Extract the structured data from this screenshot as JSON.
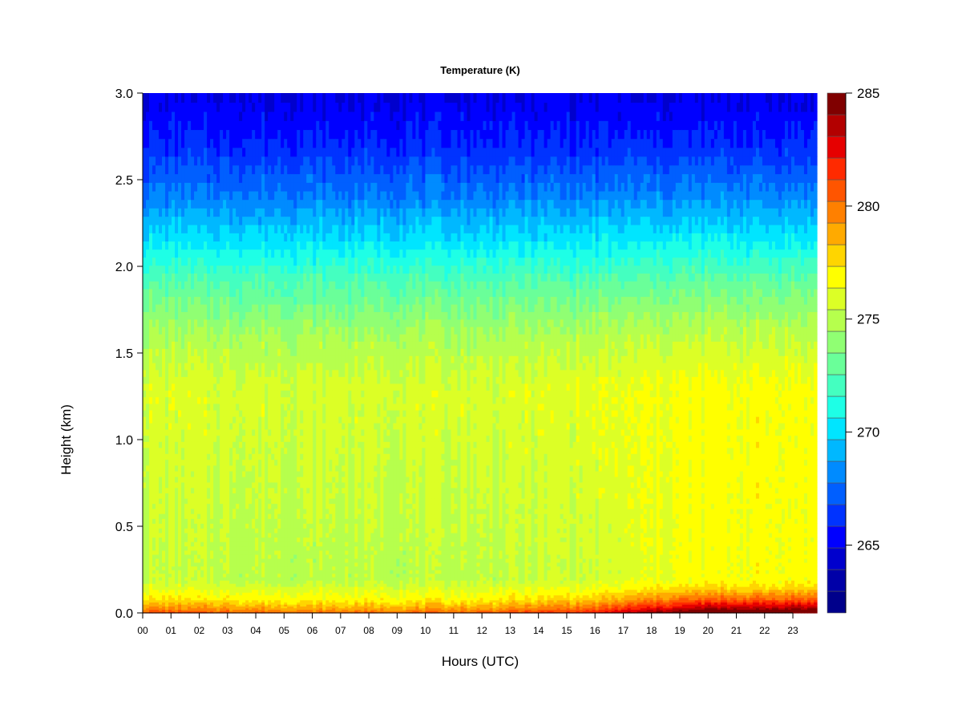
{
  "chart_data": {
    "type": "heatmap",
    "title": "Temperature (K)",
    "xlabel": "Hours (UTC)",
    "ylabel": "Height (km)",
    "x_ticks": [
      "00",
      "01",
      "02",
      "03",
      "04",
      "05",
      "06",
      "07",
      "08",
      "09",
      "10",
      "11",
      "12",
      "13",
      "14",
      "15",
      "16",
      "17",
      "18",
      "19",
      "20",
      "21",
      "22",
      "23"
    ],
    "x_range": [
      0,
      23.85
    ],
    "y_ticks": [
      "0.0",
      "0.5",
      "1.0",
      "1.5",
      "2.0",
      "2.5",
      "3.0"
    ],
    "y_range": [
      0,
      3.0
    ],
    "colorbar": {
      "ticks": [
        "265",
        "270",
        "275",
        "280",
        "285"
      ],
      "range": [
        262,
        285
      ],
      "levels": 23,
      "colors": [
        "#00008b",
        "#0000a8",
        "#0000cd",
        "#0000ff",
        "#0033ff",
        "#005fff",
        "#008bff",
        "#00b8ff",
        "#00e5ff",
        "#1effe6",
        "#44ffc0",
        "#6aff99",
        "#90ff73",
        "#b6ff4d",
        "#dcff26",
        "#ffff00",
        "#ffd500",
        "#ffaa00",
        "#ff8000",
        "#ff5500",
        "#ff2a00",
        "#e60000",
        "#b30000",
        "#800000"
      ]
    },
    "profile": [
      {
        "height": 0.0,
        "temp": 280.5
      },
      {
        "height": 0.02,
        "temp": 279.0
      },
      {
        "height": 0.08,
        "temp": 276.8
      },
      {
        "height": 0.2,
        "temp": 275.0
      },
      {
        "height": 0.5,
        "temp": 275.2
      },
      {
        "height": 1.0,
        "temp": 275.6
      },
      {
        "height": 1.3,
        "temp": 275.8
      },
      {
        "height": 1.6,
        "temp": 274.6
      },
      {
        "height": 1.9,
        "temp": 272.5
      },
      {
        "height": 2.1,
        "temp": 270.6
      },
      {
        "height": 2.4,
        "temp": 268.0
      },
      {
        "height": 2.7,
        "temp": 266.0
      },
      {
        "height": 3.0,
        "temp": 264.8
      }
    ],
    "diurnal_warming": [
      {
        "hour": 0,
        "delta": 0.3
      },
      {
        "hour": 6,
        "delta": 0.0
      },
      {
        "hour": 12,
        "delta": 0.1
      },
      {
        "hour": 16,
        "delta": 0.6
      },
      {
        "hour": 18,
        "delta": 1.3
      },
      {
        "hour": 20,
        "delta": 1.8
      },
      {
        "hour": 23.85,
        "delta": 1.9
      }
    ]
  }
}
